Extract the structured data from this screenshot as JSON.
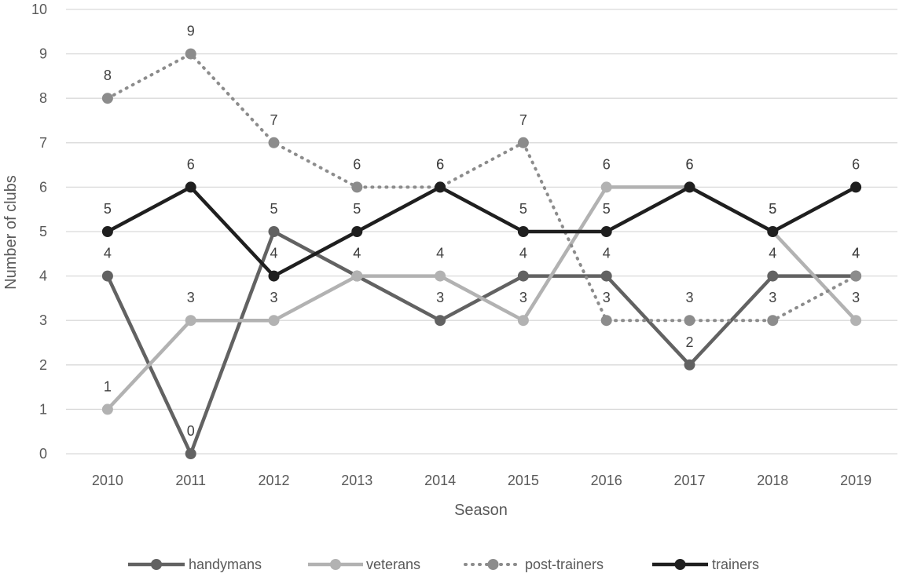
{
  "chart_data": {
    "type": "line",
    "title": "",
    "xlabel": "Season",
    "ylabel": "Number of clubs",
    "ylim": [
      0,
      10
    ],
    "yticks": [
      0,
      1,
      2,
      3,
      4,
      5,
      6,
      7,
      8,
      9,
      10
    ],
    "grid": true,
    "legend_position": "bottom",
    "categories": [
      "2010",
      "2011",
      "2012",
      "2013",
      "2014",
      "2015",
      "2016",
      "2017",
      "2018",
      "2019"
    ],
    "series": [
      {
        "name": "handymans",
        "values": [
          4,
          0,
          5,
          4,
          3,
          4,
          4,
          2,
          4,
          4
        ],
        "color": "#626262",
        "style": "solid"
      },
      {
        "name": "veterans",
        "values": [
          1,
          3,
          3,
          4,
          4,
          3,
          6,
          6,
          5,
          3
        ],
        "color": "#b2b2b2",
        "style": "solid"
      },
      {
        "name": "post-trainers",
        "values": [
          8,
          9,
          7,
          6,
          6,
          7,
          3,
          3,
          3,
          4
        ],
        "color": "#8c8c8c",
        "style": "dotted"
      },
      {
        "name": "trainers",
        "values": [
          5,
          6,
          4,
          5,
          6,
          5,
          5,
          6,
          5,
          6
        ],
        "color": "#1f1f1f",
        "style": "solid"
      }
    ],
    "data_labels": [
      {
        "cat": 0,
        "value": 4
      },
      {
        "cat": 0,
        "value": 1
      },
      {
        "cat": 0,
        "value": 8
      },
      {
        "cat": 0,
        "value": 5
      },
      {
        "cat": 1,
        "value": 0
      },
      {
        "cat": 1,
        "value": 3
      },
      {
        "cat": 1,
        "value": 9
      },
      {
        "cat": 1,
        "value": 6
      },
      {
        "cat": 2,
        "value": 5
      },
      {
        "cat": 2,
        "value": 3
      },
      {
        "cat": 2,
        "value": 7
      },
      {
        "cat": 2,
        "value": 4
      },
      {
        "cat": 3,
        "value": 4
      },
      {
        "cat": 3,
        "value": 4
      },
      {
        "cat": 3,
        "value": 6
      },
      {
        "cat": 3,
        "value": 5
      },
      {
        "cat": 4,
        "value": 3
      },
      {
        "cat": 4,
        "value": 4
      },
      {
        "cat": 4,
        "value": 6
      },
      {
        "cat": 4,
        "value": 6
      },
      {
        "cat": 5,
        "value": 4
      },
      {
        "cat": 5,
        "value": 3
      },
      {
        "cat": 5,
        "value": 7
      },
      {
        "cat": 5,
        "value": 5
      },
      {
        "cat": 6,
        "value": 4
      },
      {
        "cat": 6,
        "value": 6
      },
      {
        "cat": 6,
        "value": 3
      },
      {
        "cat": 6,
        "value": 5
      },
      {
        "cat": 7,
        "value": 2
      },
      {
        "cat": 7,
        "value": 6
      },
      {
        "cat": 7,
        "value": 3
      },
      {
        "cat": 7,
        "value": 6
      },
      {
        "cat": 8,
        "value": 4
      },
      {
        "cat": 8,
        "value": 5
      },
      {
        "cat": 8,
        "value": 3
      },
      {
        "cat": 8,
        "value": 5
      },
      {
        "cat": 9,
        "value": 4
      },
      {
        "cat": 9,
        "value": 3
      },
      {
        "cat": 9,
        "value": 4
      },
      {
        "cat": 9,
        "value": 6
      }
    ]
  }
}
